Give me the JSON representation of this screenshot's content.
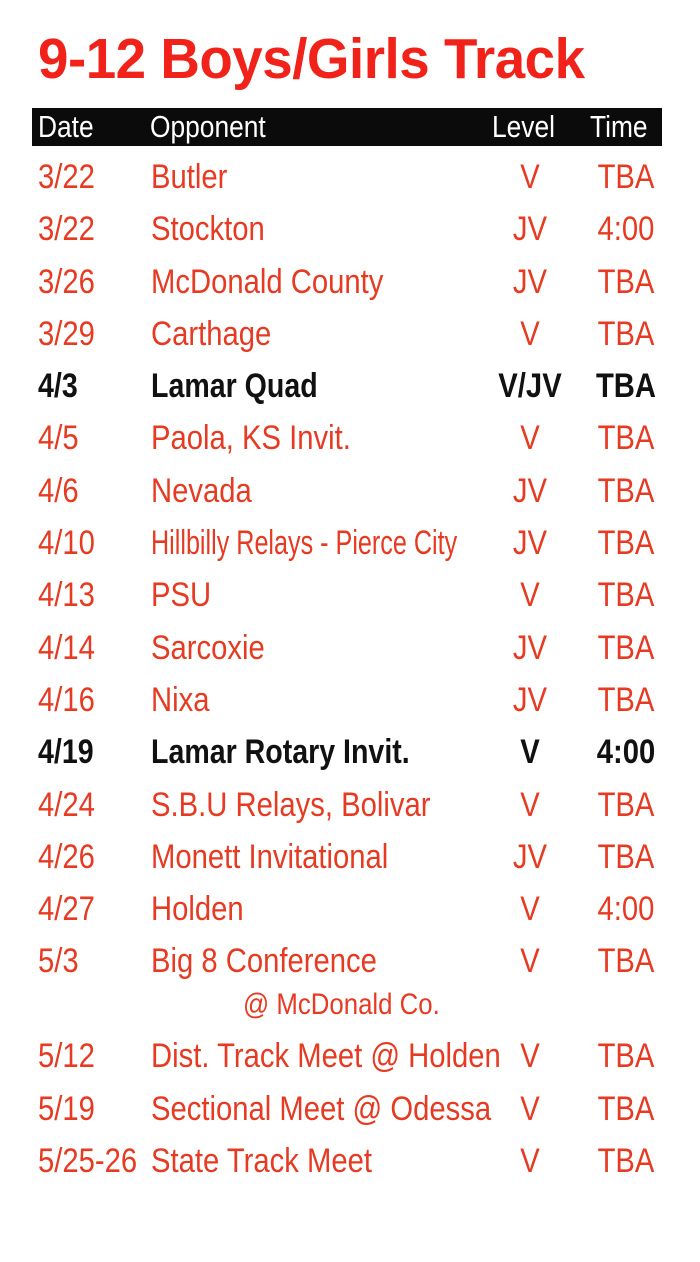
{
  "title": "9-12 Boys/Girls Track",
  "colors": {
    "accent": "#e63a22",
    "title": "#f0221a",
    "header_bg": "#0b0b0b",
    "highlight_text": "#111111"
  },
  "columns": {
    "date": "Date",
    "opponent": "Opponent",
    "level": "Level",
    "time": "Time"
  },
  "rows": [
    {
      "date": "3/22",
      "opponent": "Butler",
      "level": "V",
      "time": "TBA"
    },
    {
      "date": "3/22",
      "opponent": "Stockton",
      "level": "JV",
      "time": "4:00"
    },
    {
      "date": "3/26",
      "opponent": "McDonald County",
      "level": "JV",
      "time": "TBA"
    },
    {
      "date": "3/29",
      "opponent": "Carthage",
      "level": "V",
      "time": "TBA"
    },
    {
      "date": "4/3",
      "opponent": "Lamar Quad",
      "level": "V/JV",
      "time": "TBA",
      "highlight": true
    },
    {
      "date": "4/5",
      "opponent": "Paola, KS Invit.",
      "level": "V",
      "time": "TBA"
    },
    {
      "date": "4/6",
      "opponent": "Nevada",
      "level": "JV",
      "time": "TBA"
    },
    {
      "date": "4/10",
      "opponent": "Hillbilly Relays - Pierce City",
      "level": "JV",
      "time": "TBA"
    },
    {
      "date": "4/13",
      "opponent": "PSU",
      "level": "V",
      "time": "TBA"
    },
    {
      "date": "4/14",
      "opponent": "Sarcoxie",
      "level": "JV",
      "time": "TBA"
    },
    {
      "date": "4/16",
      "opponent": "Nixa",
      "level": "JV",
      "time": "TBA"
    },
    {
      "date": "4/19",
      "opponent": "Lamar Rotary Invit.",
      "level": "V",
      "time": "4:00",
      "highlight": true
    },
    {
      "date": "4/24",
      "opponent": "S.B.U Relays, Bolivar",
      "level": "V",
      "time": "TBA"
    },
    {
      "date": "4/26",
      "opponent": "Monett Invitational",
      "level": "JV",
      "time": "TBA"
    },
    {
      "date": "4/27",
      "opponent": "Holden",
      "level": "V",
      "time": "4:00"
    },
    {
      "date": "5/3",
      "opponent": "Big 8 Conference",
      "location": "@ McDonald Co.",
      "level": "V",
      "time": "TBA"
    },
    {
      "date": "5/12",
      "opponent": "Dist. Track Meet @ Holden",
      "level": "V",
      "time": "TBA"
    },
    {
      "date": "5/19",
      "opponent": "Sectional Meet @ Odessa",
      "level": "V",
      "time": "TBA"
    },
    {
      "date": "5/25-26",
      "opponent": "State Track Meet",
      "level": "V",
      "time": "TBA"
    }
  ]
}
